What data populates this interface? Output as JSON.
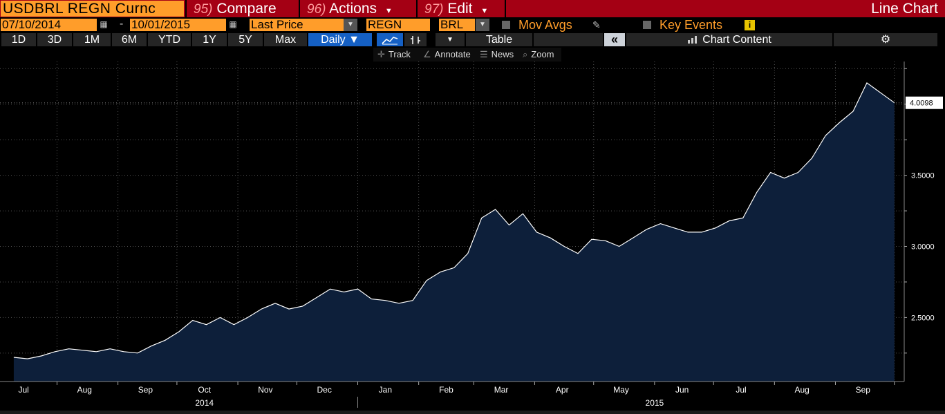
{
  "header": {
    "ticker": "USDBRL REGN Curnc",
    "compare_num": "95)",
    "compare_label": "Compare",
    "actions_num": "96)",
    "actions_label": "Actions",
    "edit_num": "97)",
    "edit_label": "Edit",
    "chart_type": "Line Chart"
  },
  "controls": {
    "start_date": "07/10/2014",
    "end_date": "10/01/2015",
    "dash": "-",
    "field": "Last Price",
    "source": "REGN",
    "currency": "BRL",
    "mov_avgs": "Mov Avgs",
    "key_events": "Key Events",
    "info_glyph": "i"
  },
  "toolbar": {
    "ranges": [
      "1D",
      "3D",
      "1M",
      "6M",
      "YTD",
      "1Y",
      "5Y",
      "Max"
    ],
    "frequency": "Daily ▼",
    "table_label": "Table",
    "collapse_glyph": "«",
    "chart_content": "Chart Content",
    "settings_glyph": "⚙"
  },
  "tools": {
    "track": "Track",
    "annotate": "Annotate",
    "news": "News",
    "zoom": "Zoom"
  },
  "colors": {
    "accent_orange": "#ff9d2a",
    "header_red": "#a40014",
    "selected_blue": "#1560c4",
    "area_fill": "#0d1f3a",
    "line": "#ffffff"
  },
  "chart_data": {
    "type": "area",
    "title": "",
    "xlabel": "",
    "ylabel": "",
    "ylim": [
      2.05,
      4.3
    ],
    "y_ticks": [
      "2.5000",
      "3.0000",
      "3.5000"
    ],
    "x_months": [
      "Jul",
      "Aug",
      "Sep",
      "Oct",
      "Nov",
      "Dec",
      "Jan",
      "Feb",
      "Mar",
      "Apr",
      "May",
      "Jun",
      "Jul",
      "Aug",
      "Sep"
    ],
    "x_years": [
      "2014",
      "2015"
    ],
    "last_value_label": "4.0098",
    "grid": "dotted",
    "x": [
      "2014-07-10",
      "2014-07-17",
      "2014-07-24",
      "2014-07-31",
      "2014-08-07",
      "2014-08-14",
      "2014-08-21",
      "2014-08-28",
      "2014-09-04",
      "2014-09-11",
      "2014-09-18",
      "2014-09-25",
      "2014-10-02",
      "2014-10-09",
      "2014-10-16",
      "2014-10-23",
      "2014-10-30",
      "2014-11-06",
      "2014-11-13",
      "2014-11-20",
      "2014-11-27",
      "2014-12-04",
      "2014-12-11",
      "2014-12-18",
      "2014-12-25",
      "2015-01-01",
      "2015-01-08",
      "2015-01-15",
      "2015-01-22",
      "2015-01-29",
      "2015-02-05",
      "2015-02-12",
      "2015-02-19",
      "2015-02-26",
      "2015-03-05",
      "2015-03-12",
      "2015-03-19",
      "2015-03-26",
      "2015-04-02",
      "2015-04-09",
      "2015-04-16",
      "2015-04-23",
      "2015-04-30",
      "2015-05-07",
      "2015-05-14",
      "2015-05-21",
      "2015-05-28",
      "2015-06-04",
      "2015-06-11",
      "2015-06-18",
      "2015-06-25",
      "2015-07-02",
      "2015-07-09",
      "2015-07-16",
      "2015-07-23",
      "2015-07-30",
      "2015-08-06",
      "2015-08-13",
      "2015-08-20",
      "2015-08-27",
      "2015-09-03",
      "2015-09-10",
      "2015-09-17",
      "2015-09-24",
      "2015-10-01"
    ],
    "values": [
      2.22,
      2.21,
      2.23,
      2.26,
      2.28,
      2.27,
      2.26,
      2.28,
      2.26,
      2.25,
      2.3,
      2.34,
      2.4,
      2.48,
      2.45,
      2.5,
      2.45,
      2.5,
      2.56,
      2.6,
      2.56,
      2.58,
      2.64,
      2.7,
      2.68,
      2.7,
      2.63,
      2.62,
      2.6,
      2.62,
      2.76,
      2.82,
      2.85,
      2.95,
      3.2,
      3.26,
      3.15,
      3.23,
      3.1,
      3.06,
      3.0,
      2.95,
      3.05,
      3.04,
      3.0,
      3.06,
      3.12,
      3.16,
      3.13,
      3.1,
      3.1,
      3.13,
      3.18,
      3.2,
      3.38,
      3.52,
      3.48,
      3.52,
      3.62,
      3.78,
      3.87,
      3.95,
      4.15,
      4.08,
      4.01
    ]
  }
}
